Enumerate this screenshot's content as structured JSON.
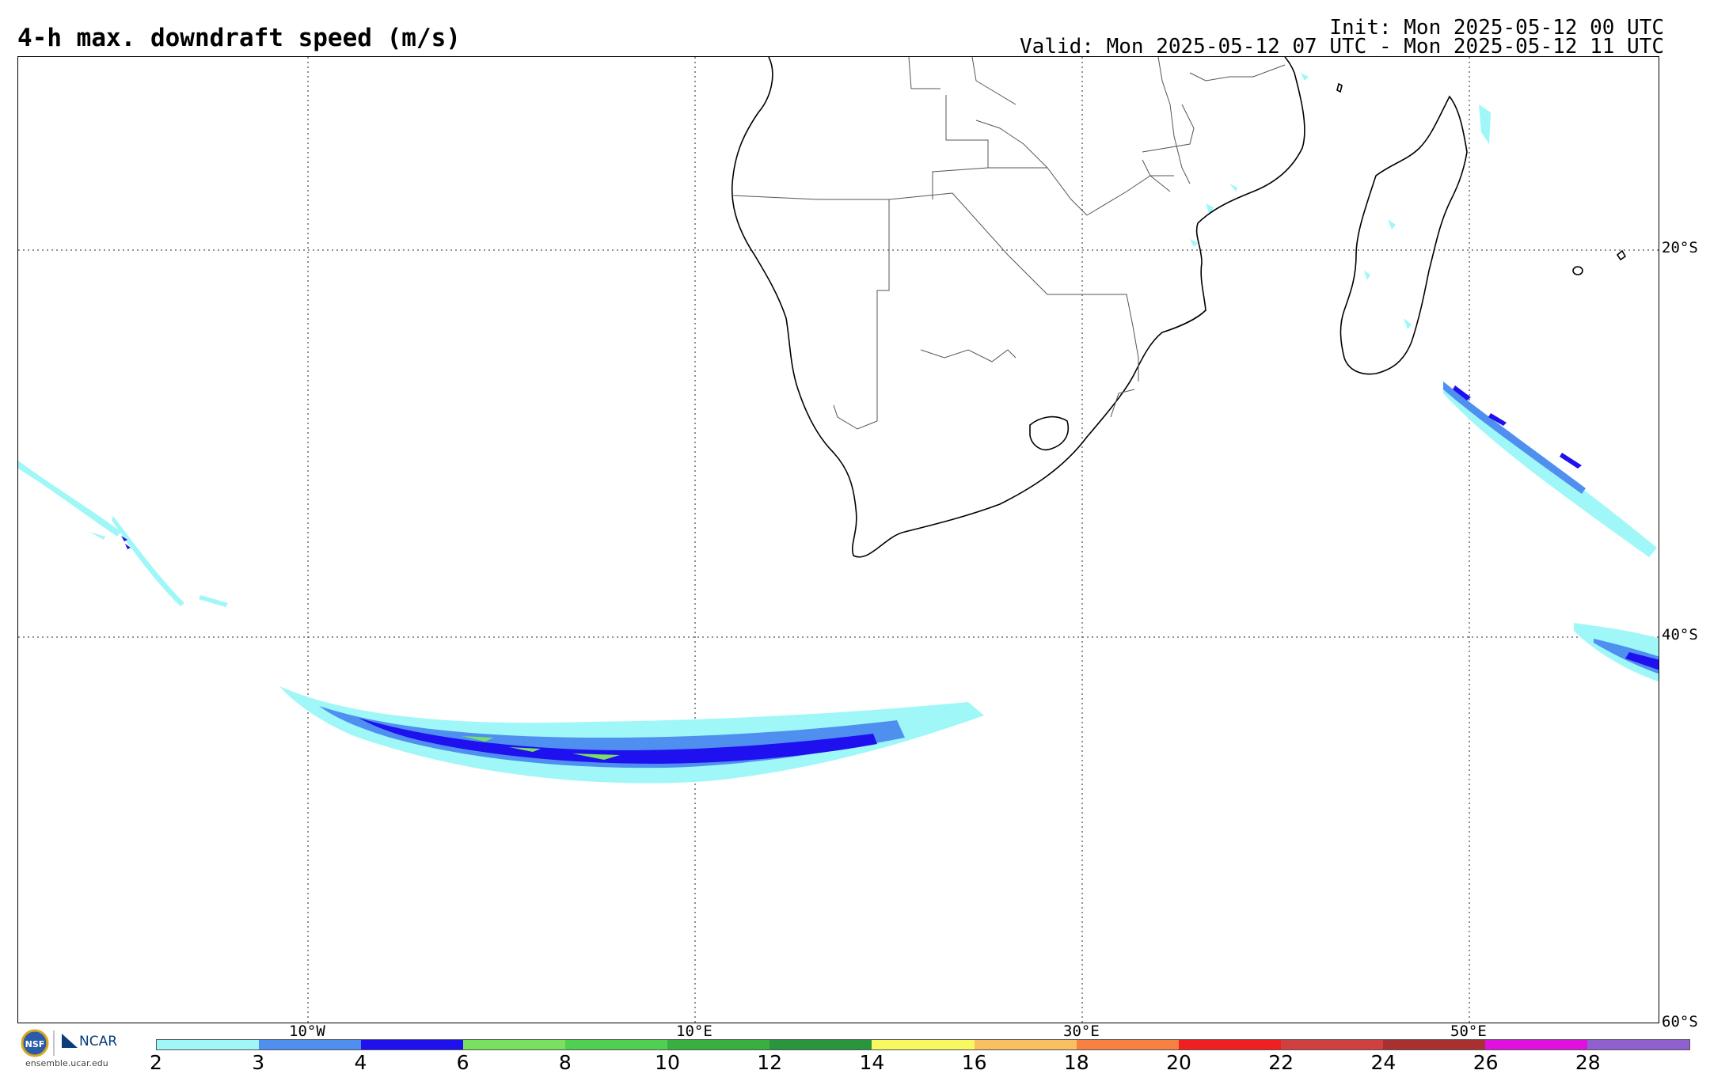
{
  "header": {
    "title": "4-h max. downdraft speed (m/s)",
    "init": "Init: Mon 2025-05-12 00 UTC",
    "valid": "Valid: Mon 2025-05-12 07 UTC - Mon 2025-05-12 11 UTC"
  },
  "map": {
    "lat_labels": [
      "20°S",
      "40°S",
      "60°S"
    ],
    "lon_labels": [
      "10°W",
      "10°E",
      "30°E",
      "50°E"
    ]
  },
  "colorbar": {
    "ticks": [
      "2",
      "3",
      "4",
      "6",
      "8",
      "10",
      "12",
      "14",
      "16",
      "18",
      "20",
      "22",
      "24",
      "26",
      "28"
    ],
    "colors": [
      "#9ff7f7",
      "#4f8ff0",
      "#1f10f0",
      "#79e060",
      "#50d050",
      "#38b040",
      "#28963c",
      "#f8f860",
      "#f8c060",
      "#f88040",
      "#f02020",
      "#d04040",
      "#a83030",
      "#e010e0",
      "#9060d0"
    ]
  },
  "logos": {
    "ncar": "NCAR",
    "nsf": "NSF",
    "url": "ensemble.ucar.edu"
  }
}
